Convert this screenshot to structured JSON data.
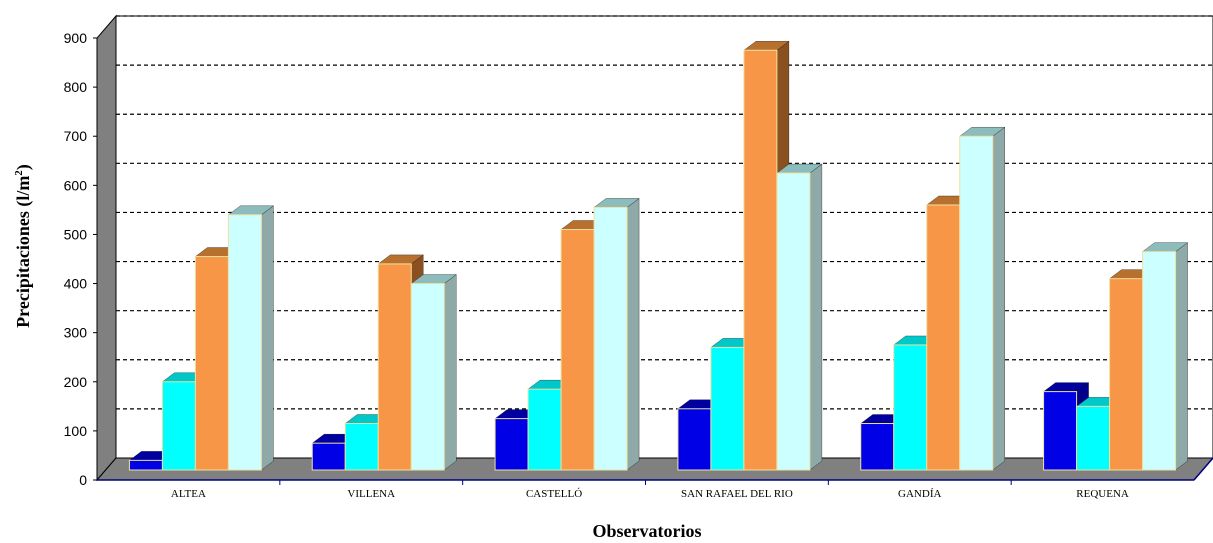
{
  "chart_data": {
    "type": "bar",
    "title": "",
    "xlabel": "Observatorios",
    "ylabel_main": "Precipitaciones (l/m",
    "ylabel_sup": "2",
    "ylabel_close": ")",
    "ylim": [
      0,
      900
    ],
    "y_ticks": [
      "0",
      "100",
      "200",
      "300",
      "400",
      "500",
      "600",
      "700",
      "800",
      "900"
    ],
    "grid": "dashed horizontal",
    "legend": "none",
    "categories": [
      "ALTEA",
      "VILLENA",
      "CASTELLÓ",
      "SAN RAFAEL DEL RIO",
      "GANDÍA",
      "REQUENA"
    ],
    "series": [
      {
        "values": [
          40,
          75,
          125,
          145,
          115,
          180
        ],
        "color": "#0000e6",
        "top_color": "#0000a0",
        "side_color": "#00008a"
      },
      {
        "values": [
          200,
          115,
          185,
          270,
          275,
          150
        ],
        "color": "#00ffff",
        "top_color": "#00c8c8",
        "side_color": "#00a8a8"
      },
      {
        "values": [
          455,
          440,
          510,
          875,
          560,
          410
        ],
        "color": "#f79646",
        "top_color": "#b8702e",
        "side_color": "#8a5020"
      },
      {
        "values": [
          540,
          400,
          555,
          625,
          700,
          465
        ],
        "color": "#ccffff",
        "top_color": "#8cbcbc",
        "side_color": "#8fa8a8"
      }
    ],
    "colors": {
      "wall": "#ffffff",
      "side_wall": "#808080",
      "floor": "#808080",
      "grid": "#000000",
      "axis": "#000080"
    }
  }
}
